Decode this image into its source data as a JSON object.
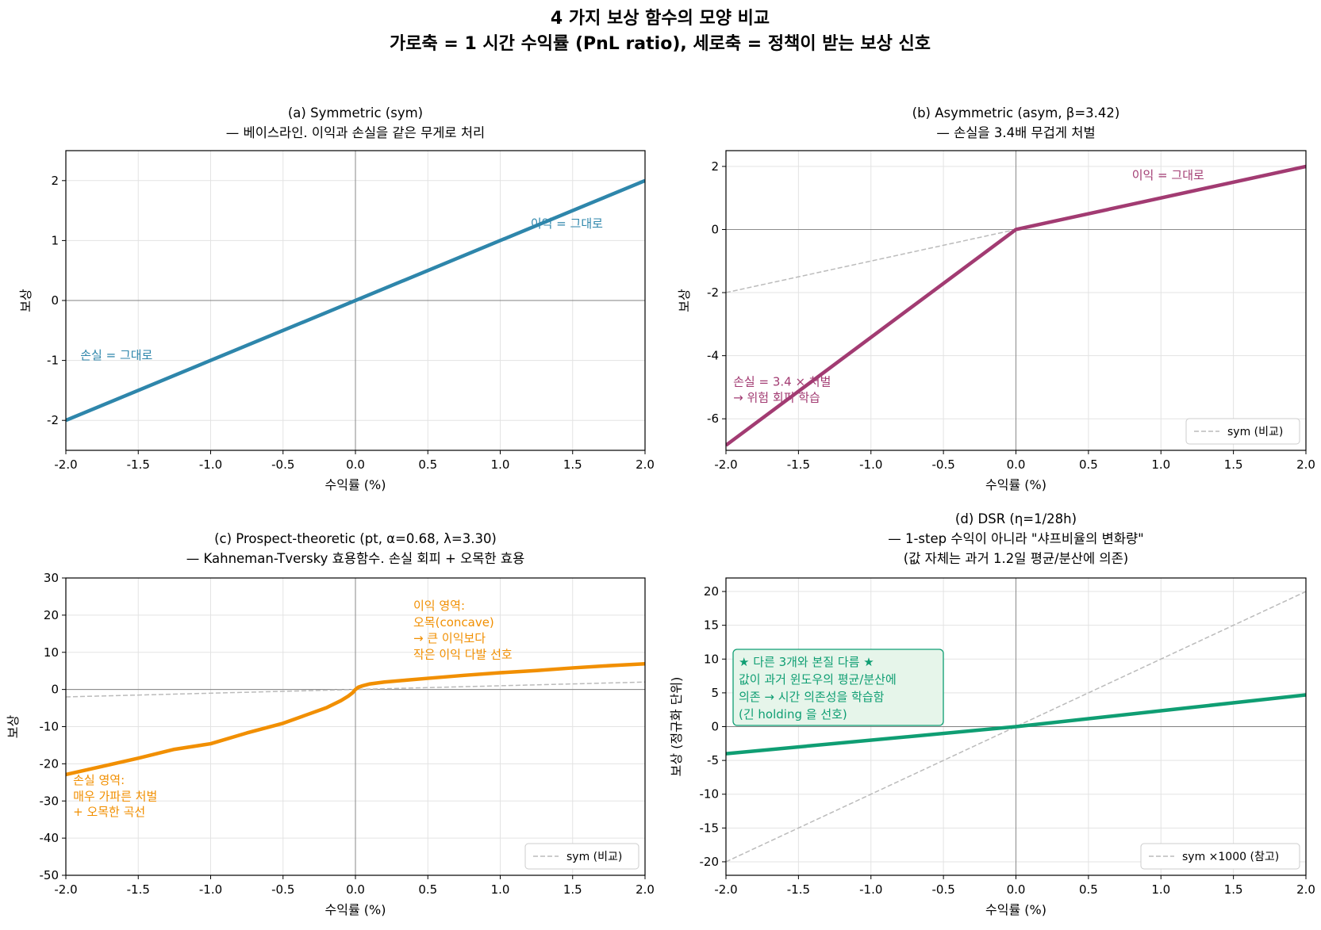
{
  "figure": {
    "title_line1": "4 가지 보상 함수의 모양 비교",
    "title_line2": "가로축 = 1 시간 수익률 (PnL ratio),  세로축 = 정책이 받는 보상 신호"
  },
  "chart_data": [
    {
      "id": "a",
      "type": "line",
      "title_line1": "(a) Symmetric (sym)",
      "title_line2": "— 베이스라인. 이익과 손실을 같은 무게로 처리",
      "title_line3": "",
      "xlabel": "수익률 (%)",
      "ylabel": "보상",
      "xlim": [
        -2.0,
        2.0
      ],
      "ylim": [
        -2.5,
        2.5
      ],
      "xticks": [
        -2.0,
        -1.5,
        -1.0,
        -0.5,
        0.0,
        0.5,
        1.0,
        1.5,
        2.0
      ],
      "yticks": [
        -2,
        -1,
        0,
        1,
        2
      ],
      "grid": true,
      "series": [
        {
          "style": "solid",
          "color": "#2e86ab",
          "x": [
            -2.0,
            2.0
          ],
          "y": [
            -2.0,
            2.0
          ]
        }
      ],
      "annotations": [
        {
          "text": "이익 = 그대로",
          "x": 1.21,
          "y": 1.22,
          "color": "#2e86ab"
        },
        {
          "text": "손실 = 그대로",
          "x": -1.9,
          "y": -0.98,
          "color": "#2e86ab"
        }
      ]
    },
    {
      "id": "b",
      "type": "line",
      "title_line1": "(b) Asymmetric (asym, β=3.42)",
      "title_line2": "— 손실을 3.4배 무겁게 처벌",
      "title_line3": "",
      "xlabel": "수익률 (%)",
      "ylabel": "보상",
      "xlim": [
        -2.0,
        2.0
      ],
      "ylim": [
        -7.0,
        2.5
      ],
      "xticks": [
        -2.0,
        -1.5,
        -1.0,
        -0.5,
        0.0,
        0.5,
        1.0,
        1.5,
        2.0
      ],
      "yticks": [
        -6,
        -4,
        -2,
        0,
        2
      ],
      "grid": true,
      "series": [
        {
          "style": "dashed",
          "color": "#bbbbbb",
          "name": "sym (비교)",
          "x": [
            -2.0,
            2.0
          ],
          "y": [
            -2.0,
            2.0
          ]
        },
        {
          "style": "solid",
          "color": "#a23b72",
          "x": [
            -2.0,
            0.0,
            2.0
          ],
          "y": [
            -6.84,
            0.0,
            2.0
          ]
        }
      ],
      "legend": {
        "position": "lower right",
        "label": "sym (비교)"
      },
      "annotations": [
        {
          "text": "이익 = 그대로",
          "x": 0.8,
          "y": 1.6,
          "color": "#a23b72"
        },
        {
          "text": "손실 = 3.4 × 처벌",
          "x": -1.95,
          "y": -4.95,
          "color": "#a23b72"
        },
        {
          "text": "→ 위험 회피 학습",
          "x": -1.95,
          "y": -5.45,
          "color": "#a23b72"
        }
      ]
    },
    {
      "id": "c",
      "type": "line",
      "title_line1": "(c) Prospect-theoretic (pt, α=0.68, λ=3.30)",
      "title_line2": "— Kahneman-Tversky 효용함수. 손실 회피 + 오목한 효용",
      "title_line3": "",
      "xlabel": "수익률 (%)",
      "ylabel": "보상",
      "xlim": [
        -2.0,
        2.0
      ],
      "ylim": [
        -50,
        30
      ],
      "xticks": [
        -2.0,
        -1.5,
        -1.0,
        -0.5,
        0.0,
        0.5,
        1.0,
        1.5,
        2.0
      ],
      "yticks": [
        -50,
        -40,
        -30,
        -20,
        -10,
        0,
        10,
        20,
        30
      ],
      "grid": true,
      "series": [
        {
          "style": "dashed",
          "color": "#bbbbbb",
          "name": "sym (비교)",
          "x": [
            -2.0,
            2.0
          ],
          "y": [
            -2.0,
            2.0
          ]
        },
        {
          "style": "solid",
          "color": "#f18f01",
          "x": [
            -2.0,
            -1.75,
            -1.5,
            -1.25,
            -1.0,
            -0.75,
            -0.5,
            -0.35,
            -0.2,
            -0.1,
            -0.05,
            -0.02,
            0.0,
            0.02,
            0.05,
            0.1,
            0.2,
            0.35,
            0.5,
            0.75,
            1.0,
            1.25,
            1.5,
            1.75,
            2.0
          ],
          "y": [
            -22.9,
            -20.7,
            -18.5,
            -16.1,
            -14.6,
            -11.7,
            -9.1,
            -7.0,
            -4.9,
            -3.0,
            -1.8,
            -0.9,
            0.0,
            0.6,
            1.0,
            1.5,
            2.0,
            2.5,
            3.0,
            3.8,
            4.5,
            5.1,
            5.8,
            6.4,
            6.9
          ]
        }
      ],
      "legend": {
        "position": "lower right",
        "label": "sym (비교)"
      },
      "annotations": [
        {
          "text": "이익 영역:",
          "x": 0.4,
          "y": 21.5,
          "color": "#f18f01"
        },
        {
          "text": "오목(concave)",
          "x": 0.4,
          "y": 17.0,
          "color": "#f18f01"
        },
        {
          "text": "→ 큰 이익보다",
          "x": 0.4,
          "y": 12.7,
          "color": "#f18f01"
        },
        {
          "text": "작은 이익 다발 선호",
          "x": 0.4,
          "y": 8.3,
          "color": "#f18f01"
        },
        {
          "text": "손실 영역:",
          "x": -1.95,
          "y": -25.5,
          "color": "#f18f01"
        },
        {
          "text": "매우 가파른 처벌",
          "x": -1.95,
          "y": -29.8,
          "color": "#f18f01"
        },
        {
          "text": "+ 오목한 곡선",
          "x": -1.95,
          "y": -34.0,
          "color": "#f18f01"
        }
      ]
    },
    {
      "id": "d",
      "type": "line",
      "title_line1": "(d) DSR (η=1/28h)",
      "title_line2": "— 1-step 수익이 아니라 \"샤프비율의 변화량\"",
      "title_line3": "(값 자체는 과거 1.2일 평균/분산에 의존)",
      "xlabel": "수익률 (%)",
      "ylabel": "보상 (정규화 단위)",
      "xlim": [
        -2.0,
        2.0
      ],
      "ylim": [
        -22,
        22
      ],
      "xticks": [
        -2.0,
        -1.5,
        -1.0,
        -0.5,
        0.0,
        0.5,
        1.0,
        1.5,
        2.0
      ],
      "yticks": [
        -20,
        -15,
        -10,
        -5,
        0,
        5,
        10,
        15,
        20
      ],
      "grid": true,
      "series": [
        {
          "style": "dashed",
          "color": "#bbbbbb",
          "name": "sym ×1000 (참고)",
          "x": [
            -2.0,
            2.0
          ],
          "y": [
            -20.0,
            20.0
          ]
        },
        {
          "style": "solid",
          "color": "#0f9e73",
          "x": [
            -2.0,
            0.0,
            2.0
          ],
          "y": [
            -4.0,
            0.0,
            4.7
          ]
        }
      ],
      "legend": {
        "position": "lower right",
        "label": "sym ×1000 (참고)"
      },
      "infobox": {
        "lines": [
          "★ 다른 3개와 본질 다름 ★",
          "값이 과거 윈도우의 평균/분산에",
          "의존 → 시간 의존성을 학습함",
          "(긴 holding 을 선호)"
        ],
        "text_color": "#0f9e73",
        "bg": "#e6f5ea",
        "border": "#0f9e73"
      }
    }
  ]
}
